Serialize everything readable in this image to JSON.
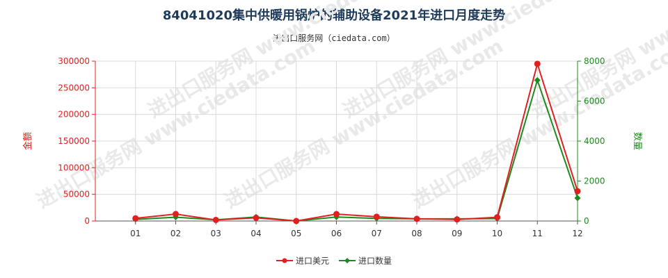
{
  "title": "84041020集中供暖用锅炉的辅助设备2021年进口月度走势",
  "subtitle": "进出口服务网（ciedata.com）",
  "watermark": "进出口服务网 www.ciedata.com",
  "colors": {
    "left_axis": "#e02020",
    "right_axis": "#1e8a1e",
    "grid": "#d9d9d9",
    "axis": "#555555"
  },
  "chart_data": {
    "type": "line",
    "categories": [
      "01",
      "02",
      "03",
      "04",
      "05",
      "06",
      "07",
      "08",
      "09",
      "10",
      "11",
      "12"
    ],
    "left_axis": {
      "label": "金额",
      "ylim": [
        0,
        300000
      ],
      "ticks": [
        0,
        50000,
        100000,
        150000,
        200000,
        250000,
        300000
      ]
    },
    "right_axis": {
      "label": "数量",
      "ylim": [
        0,
        8000
      ],
      "ticks": [
        0,
        2000,
        4000,
        6000,
        8000
      ]
    },
    "grid": true,
    "legend_position": "bottom-center",
    "series": [
      {
        "name": "进口美元",
        "axis": "left",
        "color": "#e02020",
        "values": [
          5000,
          13000,
          2000,
          6000,
          0,
          13000,
          8000,
          4000,
          3000,
          7000,
          295000,
          56000
        ]
      },
      {
        "name": "进口数量",
        "axis": "right",
        "color": "#1e8a1e",
        "values": [
          80,
          190,
          60,
          200,
          0,
          200,
          130,
          110,
          110,
          120,
          7050,
          1150
        ]
      }
    ]
  }
}
